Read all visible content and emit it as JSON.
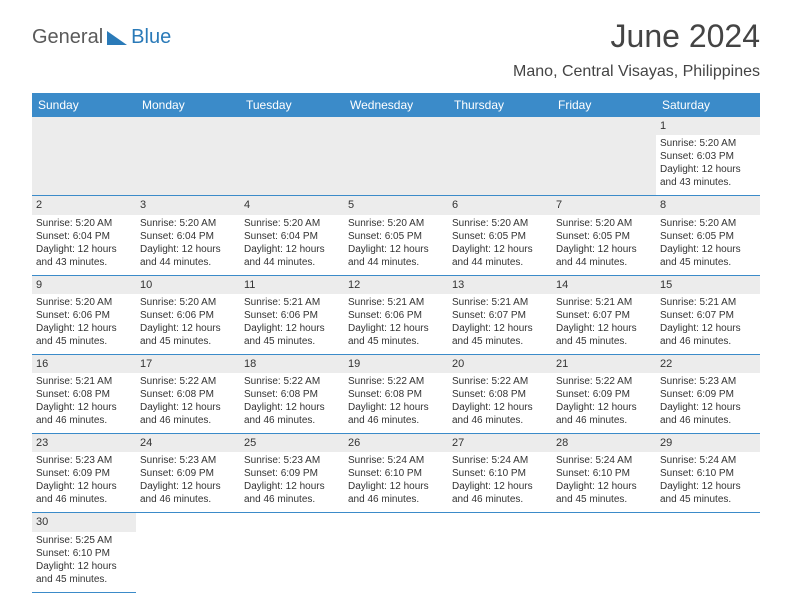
{
  "logo": {
    "text1": "General",
    "text2": "Blue"
  },
  "title": "June 2024",
  "location": "Mano, Central Visayas, Philippines",
  "colors": {
    "header_bg": "#3b8bc9",
    "header_text": "#ffffff",
    "daynum_bg": "#ececec",
    "row_border": "#3b8bc9",
    "text": "#333333",
    "logo_gray": "#5a5a5a",
    "logo_blue": "#2a7ab8"
  },
  "typography": {
    "title_fontsize": 32,
    "location_fontsize": 16,
    "dayheader_fontsize": 12,
    "cell_fontsize": 10
  },
  "day_headers": [
    "Sunday",
    "Monday",
    "Tuesday",
    "Wednesday",
    "Thursday",
    "Friday",
    "Saturday"
  ],
  "weeks": [
    [
      null,
      null,
      null,
      null,
      null,
      null,
      {
        "n": "1",
        "sr": "Sunrise: 5:20 AM",
        "ss": "Sunset: 6:03 PM",
        "d1": "Daylight: 12 hours",
        "d2": "and 43 minutes."
      }
    ],
    [
      {
        "n": "2",
        "sr": "Sunrise: 5:20 AM",
        "ss": "Sunset: 6:04 PM",
        "d1": "Daylight: 12 hours",
        "d2": "and 43 minutes."
      },
      {
        "n": "3",
        "sr": "Sunrise: 5:20 AM",
        "ss": "Sunset: 6:04 PM",
        "d1": "Daylight: 12 hours",
        "d2": "and 44 minutes."
      },
      {
        "n": "4",
        "sr": "Sunrise: 5:20 AM",
        "ss": "Sunset: 6:04 PM",
        "d1": "Daylight: 12 hours",
        "d2": "and 44 minutes."
      },
      {
        "n": "5",
        "sr": "Sunrise: 5:20 AM",
        "ss": "Sunset: 6:05 PM",
        "d1": "Daylight: 12 hours",
        "d2": "and 44 minutes."
      },
      {
        "n": "6",
        "sr": "Sunrise: 5:20 AM",
        "ss": "Sunset: 6:05 PM",
        "d1": "Daylight: 12 hours",
        "d2": "and 44 minutes."
      },
      {
        "n": "7",
        "sr": "Sunrise: 5:20 AM",
        "ss": "Sunset: 6:05 PM",
        "d1": "Daylight: 12 hours",
        "d2": "and 44 minutes."
      },
      {
        "n": "8",
        "sr": "Sunrise: 5:20 AM",
        "ss": "Sunset: 6:05 PM",
        "d1": "Daylight: 12 hours",
        "d2": "and 45 minutes."
      }
    ],
    [
      {
        "n": "9",
        "sr": "Sunrise: 5:20 AM",
        "ss": "Sunset: 6:06 PM",
        "d1": "Daylight: 12 hours",
        "d2": "and 45 minutes."
      },
      {
        "n": "10",
        "sr": "Sunrise: 5:20 AM",
        "ss": "Sunset: 6:06 PM",
        "d1": "Daylight: 12 hours",
        "d2": "and 45 minutes."
      },
      {
        "n": "11",
        "sr": "Sunrise: 5:21 AM",
        "ss": "Sunset: 6:06 PM",
        "d1": "Daylight: 12 hours",
        "d2": "and 45 minutes."
      },
      {
        "n": "12",
        "sr": "Sunrise: 5:21 AM",
        "ss": "Sunset: 6:06 PM",
        "d1": "Daylight: 12 hours",
        "d2": "and 45 minutes."
      },
      {
        "n": "13",
        "sr": "Sunrise: 5:21 AM",
        "ss": "Sunset: 6:07 PM",
        "d1": "Daylight: 12 hours",
        "d2": "and 45 minutes."
      },
      {
        "n": "14",
        "sr": "Sunrise: 5:21 AM",
        "ss": "Sunset: 6:07 PM",
        "d1": "Daylight: 12 hours",
        "d2": "and 45 minutes."
      },
      {
        "n": "15",
        "sr": "Sunrise: 5:21 AM",
        "ss": "Sunset: 6:07 PM",
        "d1": "Daylight: 12 hours",
        "d2": "and 46 minutes."
      }
    ],
    [
      {
        "n": "16",
        "sr": "Sunrise: 5:21 AM",
        "ss": "Sunset: 6:08 PM",
        "d1": "Daylight: 12 hours",
        "d2": "and 46 minutes."
      },
      {
        "n": "17",
        "sr": "Sunrise: 5:22 AM",
        "ss": "Sunset: 6:08 PM",
        "d1": "Daylight: 12 hours",
        "d2": "and 46 minutes."
      },
      {
        "n": "18",
        "sr": "Sunrise: 5:22 AM",
        "ss": "Sunset: 6:08 PM",
        "d1": "Daylight: 12 hours",
        "d2": "and 46 minutes."
      },
      {
        "n": "19",
        "sr": "Sunrise: 5:22 AM",
        "ss": "Sunset: 6:08 PM",
        "d1": "Daylight: 12 hours",
        "d2": "and 46 minutes."
      },
      {
        "n": "20",
        "sr": "Sunrise: 5:22 AM",
        "ss": "Sunset: 6:08 PM",
        "d1": "Daylight: 12 hours",
        "d2": "and 46 minutes."
      },
      {
        "n": "21",
        "sr": "Sunrise: 5:22 AM",
        "ss": "Sunset: 6:09 PM",
        "d1": "Daylight: 12 hours",
        "d2": "and 46 minutes."
      },
      {
        "n": "22",
        "sr": "Sunrise: 5:23 AM",
        "ss": "Sunset: 6:09 PM",
        "d1": "Daylight: 12 hours",
        "d2": "and 46 minutes."
      }
    ],
    [
      {
        "n": "23",
        "sr": "Sunrise: 5:23 AM",
        "ss": "Sunset: 6:09 PM",
        "d1": "Daylight: 12 hours",
        "d2": "and 46 minutes."
      },
      {
        "n": "24",
        "sr": "Sunrise: 5:23 AM",
        "ss": "Sunset: 6:09 PM",
        "d1": "Daylight: 12 hours",
        "d2": "and 46 minutes."
      },
      {
        "n": "25",
        "sr": "Sunrise: 5:23 AM",
        "ss": "Sunset: 6:09 PM",
        "d1": "Daylight: 12 hours",
        "d2": "and 46 minutes."
      },
      {
        "n": "26",
        "sr": "Sunrise: 5:24 AM",
        "ss": "Sunset: 6:10 PM",
        "d1": "Daylight: 12 hours",
        "d2": "and 46 minutes."
      },
      {
        "n": "27",
        "sr": "Sunrise: 5:24 AM",
        "ss": "Sunset: 6:10 PM",
        "d1": "Daylight: 12 hours",
        "d2": "and 46 minutes."
      },
      {
        "n": "28",
        "sr": "Sunrise: 5:24 AM",
        "ss": "Sunset: 6:10 PM",
        "d1": "Daylight: 12 hours",
        "d2": "and 45 minutes."
      },
      {
        "n": "29",
        "sr": "Sunrise: 5:24 AM",
        "ss": "Sunset: 6:10 PM",
        "d1": "Daylight: 12 hours",
        "d2": "and 45 minutes."
      }
    ],
    [
      {
        "n": "30",
        "sr": "Sunrise: 5:25 AM",
        "ss": "Sunset: 6:10 PM",
        "d1": "Daylight: 12 hours",
        "d2": "and 45 minutes."
      },
      null,
      null,
      null,
      null,
      null,
      null
    ]
  ]
}
